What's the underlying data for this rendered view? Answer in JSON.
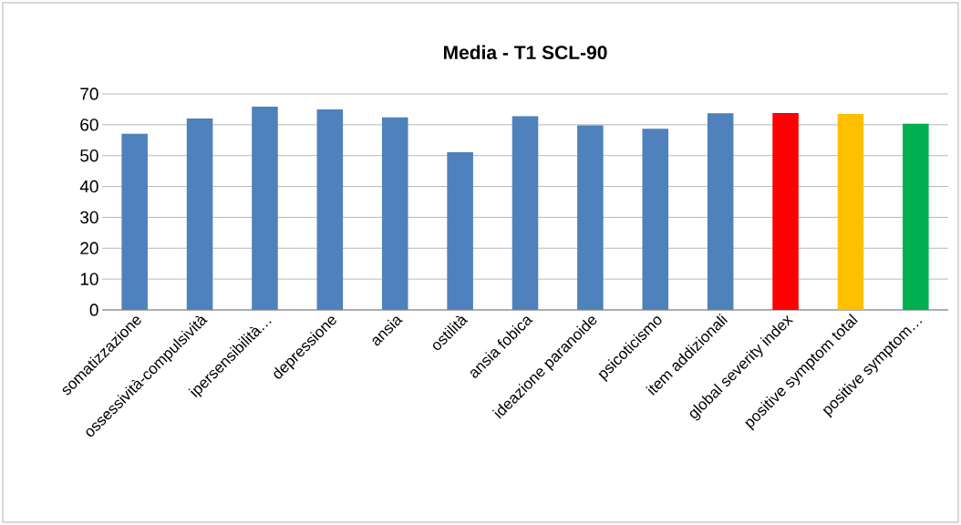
{
  "chart_data": {
    "type": "bar",
    "title": "Media - T1 SCL-90",
    "categories": [
      "somatizzazione",
      "ossessività-compulsività",
      "ipersensibilità…",
      "depressione",
      "ansia",
      "ostilità",
      "ansia fobica",
      "ideazione paranoide",
      "psicoticismo",
      "item addizionali",
      "global severity index",
      "positive symptom total",
      "positive symptom…"
    ],
    "values": [
      57.1,
      62.0,
      65.9,
      65.0,
      62.4,
      51.1,
      62.8,
      59.8,
      58.7,
      63.7,
      63.8,
      63.5,
      60.3
    ],
    "colors": [
      "#4f81bd",
      "#4f81bd",
      "#4f81bd",
      "#4f81bd",
      "#4f81bd",
      "#4f81bd",
      "#4f81bd",
      "#4f81bd",
      "#4f81bd",
      "#4f81bd",
      "#ff0000",
      "#ffc000",
      "#00b050"
    ],
    "ylim": [
      0,
      70
    ],
    "yticks": [
      0,
      10,
      20,
      30,
      40,
      50,
      60,
      70
    ],
    "grid": "y"
  }
}
